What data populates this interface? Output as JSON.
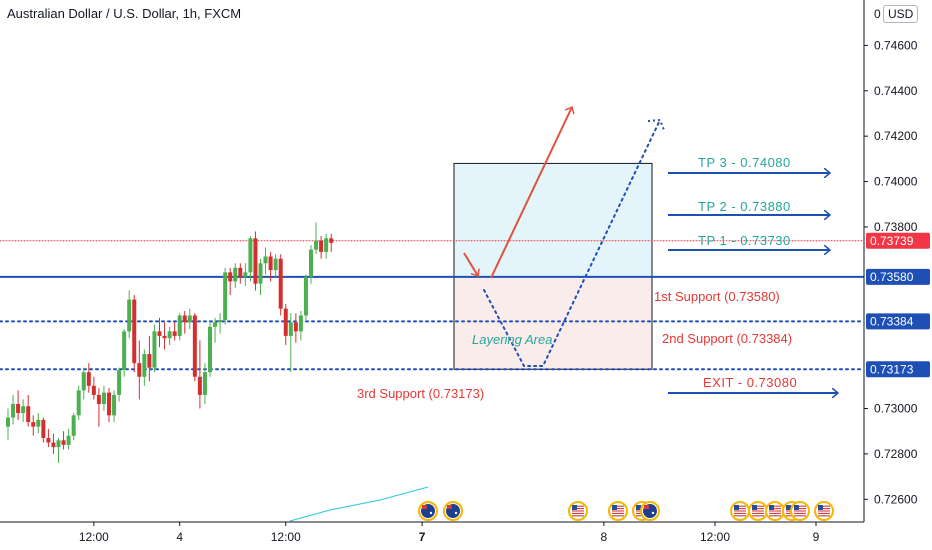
{
  "title": "Australian Dollar / U.S. Dollar, 1h, FXCM",
  "currency_badge": "USD",
  "currency_prefix": "0",
  "colors": {
    "bull": "#4caf50",
    "bear": "#d32f2f",
    "blue": "#1e4fb5",
    "teal": "#26a69a",
    "red_text": "#e53935",
    "price_label_red": "#f23645",
    "price_label_blue": "#1e4fb5"
  },
  "chart_data": {
    "type": "candlestick",
    "symbol": "AUDUSD",
    "timeframe": "1h",
    "ylim": [
      0.725,
      0.748
    ],
    "y_ticks": [
      "0.74600",
      "0.74400",
      "0.74200",
      "0.74000",
      "0.73800",
      "0.73000",
      "0.72800",
      "0.72600"
    ],
    "x_ticks": [
      {
        "label": "12:00",
        "index": 17
      },
      {
        "label": "4",
        "index": 34
      },
      {
        "label": "12:00",
        "index": 55
      },
      {
        "label": "7",
        "index": 82
      },
      {
        "label": "8",
        "index": 118
      },
      {
        "label": "12:00",
        "index": 140
      },
      {
        "label": "9",
        "index": 160
      }
    ],
    "candles": [
      {
        "o": 0.7292,
        "h": 0.73,
        "l": 0.7286,
        "c": 0.7296
      },
      {
        "o": 0.7296,
        "h": 0.7306,
        "l": 0.7293,
        "c": 0.7302
      },
      {
        "o": 0.7302,
        "h": 0.7308,
        "l": 0.7295,
        "c": 0.7298
      },
      {
        "o": 0.7298,
        "h": 0.7304,
        "l": 0.7294,
        "c": 0.7301
      },
      {
        "o": 0.7301,
        "h": 0.7306,
        "l": 0.7292,
        "c": 0.7294
      },
      {
        "o": 0.7294,
        "h": 0.7297,
        "l": 0.7288,
        "c": 0.7292
      },
      {
        "o": 0.7292,
        "h": 0.7298,
        "l": 0.7289,
        "c": 0.7295
      },
      {
        "o": 0.7295,
        "h": 0.7296,
        "l": 0.7285,
        "c": 0.7287
      },
      {
        "o": 0.7287,
        "h": 0.7291,
        "l": 0.7283,
        "c": 0.7285
      },
      {
        "o": 0.7285,
        "h": 0.7289,
        "l": 0.728,
        "c": 0.7283
      },
      {
        "o": 0.7283,
        "h": 0.7287,
        "l": 0.7276,
        "c": 0.7286
      },
      {
        "o": 0.7286,
        "h": 0.729,
        "l": 0.7282,
        "c": 0.7284
      },
      {
        "o": 0.7284,
        "h": 0.7291,
        "l": 0.7282,
        "c": 0.7288
      },
      {
        "o": 0.7288,
        "h": 0.7298,
        "l": 0.7286,
        "c": 0.7297
      },
      {
        "o": 0.7297,
        "h": 0.731,
        "l": 0.7295,
        "c": 0.7308
      },
      {
        "o": 0.7308,
        "h": 0.7318,
        "l": 0.7304,
        "c": 0.7316
      },
      {
        "o": 0.7316,
        "h": 0.732,
        "l": 0.7307,
        "c": 0.731
      },
      {
        "o": 0.731,
        "h": 0.7314,
        "l": 0.7304,
        "c": 0.7306
      },
      {
        "o": 0.7306,
        "h": 0.7309,
        "l": 0.7292,
        "c": 0.7302
      },
      {
        "o": 0.7302,
        "h": 0.731,
        "l": 0.7299,
        "c": 0.7307
      },
      {
        "o": 0.7307,
        "h": 0.7309,
        "l": 0.7294,
        "c": 0.7297
      },
      {
        "o": 0.7297,
        "h": 0.7308,
        "l": 0.7294,
        "c": 0.7306
      },
      {
        "o": 0.7306,
        "h": 0.7318,
        "l": 0.7303,
        "c": 0.7317
      },
      {
        "o": 0.7317,
        "h": 0.7335,
        "l": 0.7314,
        "c": 0.7334
      },
      {
        "o": 0.7334,
        "h": 0.7352,
        "l": 0.7331,
        "c": 0.7348
      },
      {
        "o": 0.7348,
        "h": 0.735,
        "l": 0.7316,
        "c": 0.732
      },
      {
        "o": 0.732,
        "h": 0.733,
        "l": 0.7304,
        "c": 0.7314
      },
      {
        "o": 0.7314,
        "h": 0.7326,
        "l": 0.731,
        "c": 0.7324
      },
      {
        "o": 0.7324,
        "h": 0.7332,
        "l": 0.7312,
        "c": 0.7318
      },
      {
        "o": 0.7318,
        "h": 0.7337,
        "l": 0.7316,
        "c": 0.7334
      },
      {
        "o": 0.7334,
        "h": 0.734,
        "l": 0.7327,
        "c": 0.7332
      },
      {
        "o": 0.7332,
        "h": 0.7338,
        "l": 0.7326,
        "c": 0.7331
      },
      {
        "o": 0.7331,
        "h": 0.7336,
        "l": 0.7328,
        "c": 0.7334
      },
      {
        "o": 0.7334,
        "h": 0.7338,
        "l": 0.733,
        "c": 0.7332
      },
      {
        "o": 0.7332,
        "h": 0.7342,
        "l": 0.733,
        "c": 0.7341
      },
      {
        "o": 0.7341,
        "h": 0.7343,
        "l": 0.7333,
        "c": 0.7338
      },
      {
        "o": 0.7338,
        "h": 0.7344,
        "l": 0.7335,
        "c": 0.7341
      },
      {
        "o": 0.7341,
        "h": 0.7342,
        "l": 0.7312,
        "c": 0.7314
      },
      {
        "o": 0.7314,
        "h": 0.733,
        "l": 0.73,
        "c": 0.7306
      },
      {
        "o": 0.7306,
        "h": 0.732,
        "l": 0.7302,
        "c": 0.7316
      },
      {
        "o": 0.7316,
        "h": 0.7338,
        "l": 0.7314,
        "c": 0.7336
      },
      {
        "o": 0.7336,
        "h": 0.734,
        "l": 0.7329,
        "c": 0.7338
      },
      {
        "o": 0.7338,
        "h": 0.7342,
        "l": 0.7333,
        "c": 0.7339
      },
      {
        "o": 0.7339,
        "h": 0.7362,
        "l": 0.7337,
        "c": 0.736
      },
      {
        "o": 0.736,
        "h": 0.7362,
        "l": 0.735,
        "c": 0.7356
      },
      {
        "o": 0.7356,
        "h": 0.7364,
        "l": 0.7353,
        "c": 0.7362
      },
      {
        "o": 0.7362,
        "h": 0.7364,
        "l": 0.7355,
        "c": 0.7358
      },
      {
        "o": 0.7358,
        "h": 0.7364,
        "l": 0.7354,
        "c": 0.736
      },
      {
        "o": 0.736,
        "h": 0.7376,
        "l": 0.7356,
        "c": 0.7375
      },
      {
        "o": 0.7375,
        "h": 0.7378,
        "l": 0.7352,
        "c": 0.7355
      },
      {
        "o": 0.7355,
        "h": 0.7366,
        "l": 0.735,
        "c": 0.7364
      },
      {
        "o": 0.7364,
        "h": 0.7371,
        "l": 0.7359,
        "c": 0.7367
      },
      {
        "o": 0.7367,
        "h": 0.7369,
        "l": 0.7356,
        "c": 0.7361
      },
      {
        "o": 0.7361,
        "h": 0.7368,
        "l": 0.7358,
        "c": 0.7366
      },
      {
        "o": 0.7366,
        "h": 0.7368,
        "l": 0.7341,
        "c": 0.7344
      },
      {
        "o": 0.7344,
        "h": 0.7346,
        "l": 0.7328,
        "c": 0.7332
      },
      {
        "o": 0.7332,
        "h": 0.7342,
        "l": 0.7316,
        "c": 0.7338
      },
      {
        "o": 0.7338,
        "h": 0.7342,
        "l": 0.7329,
        "c": 0.7334
      },
      {
        "o": 0.7334,
        "h": 0.7343,
        "l": 0.733,
        "c": 0.7341
      },
      {
        "o": 0.7341,
        "h": 0.7359,
        "l": 0.7339,
        "c": 0.7358
      },
      {
        "o": 0.7358,
        "h": 0.7372,
        "l": 0.7355,
        "c": 0.737
      },
      {
        "o": 0.737,
        "h": 0.7382,
        "l": 0.7368,
        "c": 0.7374
      },
      {
        "o": 0.7374,
        "h": 0.7376,
        "l": 0.7366,
        "c": 0.7369
      },
      {
        "o": 0.7369,
        "h": 0.7377,
        "l": 0.7366,
        "c": 0.7375
      },
      {
        "o": 0.7375,
        "h": 0.7377,
        "l": 0.7369,
        "c": 0.7373
      }
    ],
    "horizontal_lines": [
      {
        "value": 0.7358,
        "style": "solid",
        "color": "#1e4fb5",
        "label": "0.73580"
      },
      {
        "value": 0.73384,
        "style": "dotted",
        "color": "#1e4fb5",
        "label": "0.73384"
      },
      {
        "value": 0.73173,
        "style": "dotted",
        "color": "#1e4fb5",
        "label": "0.73173"
      },
      {
        "value": 0.73739,
        "style": "dotted",
        "color": "#f23645",
        "label": "0.73739"
      }
    ],
    "targets": [
      {
        "text": "TP 3 - 0.74080",
        "value": 0.7408
      },
      {
        "text": "TP 2 - 0.73880",
        "value": 0.7388
      },
      {
        "text": "TP 1 - 0.73730",
        "value": 0.7373
      },
      {
        "text": "EXIT - 0.73080",
        "value": 0.7308
      }
    ],
    "supports": [
      {
        "text": "1st Support (0.73580)"
      },
      {
        "text": "2nd Support (0.73384)"
      },
      {
        "text": "3rd Support (0.73173)"
      }
    ],
    "zone_label": "Layering Area",
    "event_flags": {
      "7": [
        "AU",
        "AU"
      ],
      "8": [
        "US",
        "US",
        "US",
        "AU"
      ],
      "9": [
        "US",
        "US",
        "US",
        "US",
        "US",
        "US"
      ]
    }
  }
}
